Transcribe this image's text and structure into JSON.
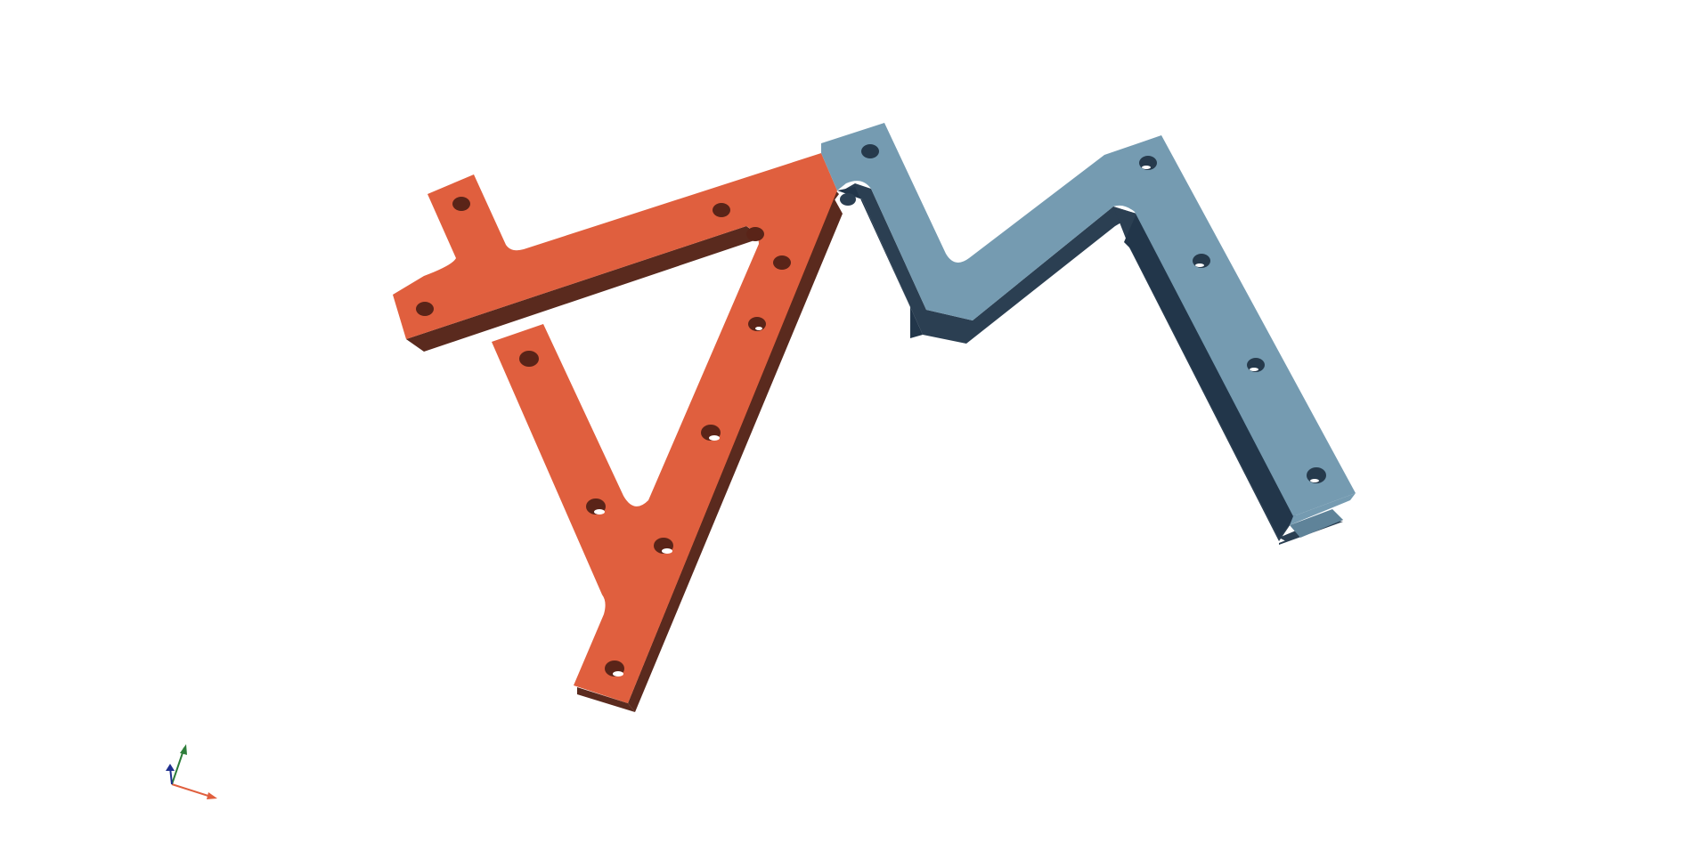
{
  "scene": {
    "background": "#ffffff",
    "parts": [
      {
        "id": "orange-bracket",
        "color_top": "#e05f3e",
        "color_side": "#5a2a1e",
        "color_hole": "#5a2418",
        "hole_count": 11
      },
      {
        "id": "blue-bracket",
        "color_top": "#759bb1",
        "color_side": "#2b3f52",
        "color_hole": "#263a4c",
        "hole_count": 7
      }
    ],
    "axis_triad": {
      "x_color": "#e05f3e",
      "y_color": "#2e7d3a",
      "z_color": "#1f2f8f"
    }
  }
}
